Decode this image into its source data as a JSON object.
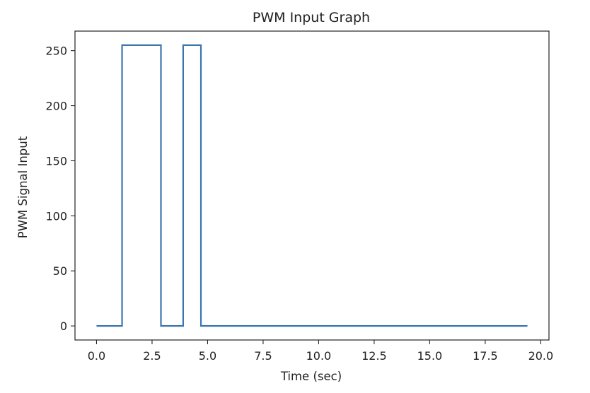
{
  "chart_data": {
    "type": "line",
    "title": "PWM Input Graph",
    "xlabel": "Time (sec)",
    "ylabel": "PWM Signal Input",
    "xlim": [
      -0.97,
      20.37
    ],
    "ylim": [
      -12.75,
      267.75
    ],
    "xticks": [
      0.0,
      2.5,
      5.0,
      7.5,
      10.0,
      12.5,
      15.0,
      17.5,
      20.0
    ],
    "xtick_labels": [
      "0.0",
      "2.5",
      "5.0",
      "7.5",
      "10.0",
      "12.5",
      "15.0",
      "17.5",
      "20.0"
    ],
    "yticks": [
      0,
      50,
      100,
      150,
      200,
      250
    ],
    "ytick_labels": [
      "0",
      "50",
      "100",
      "150",
      "200",
      "250"
    ],
    "grid": false,
    "series": [
      {
        "color": "#3b75af",
        "x": [
          0.0,
          1.15,
          1.15,
          2.9,
          2.9,
          3.9,
          3.9,
          4.7,
          4.7,
          19.4
        ],
        "y": [
          0,
          0,
          255,
          255,
          0,
          0,
          255,
          255,
          0,
          0
        ]
      }
    ]
  }
}
